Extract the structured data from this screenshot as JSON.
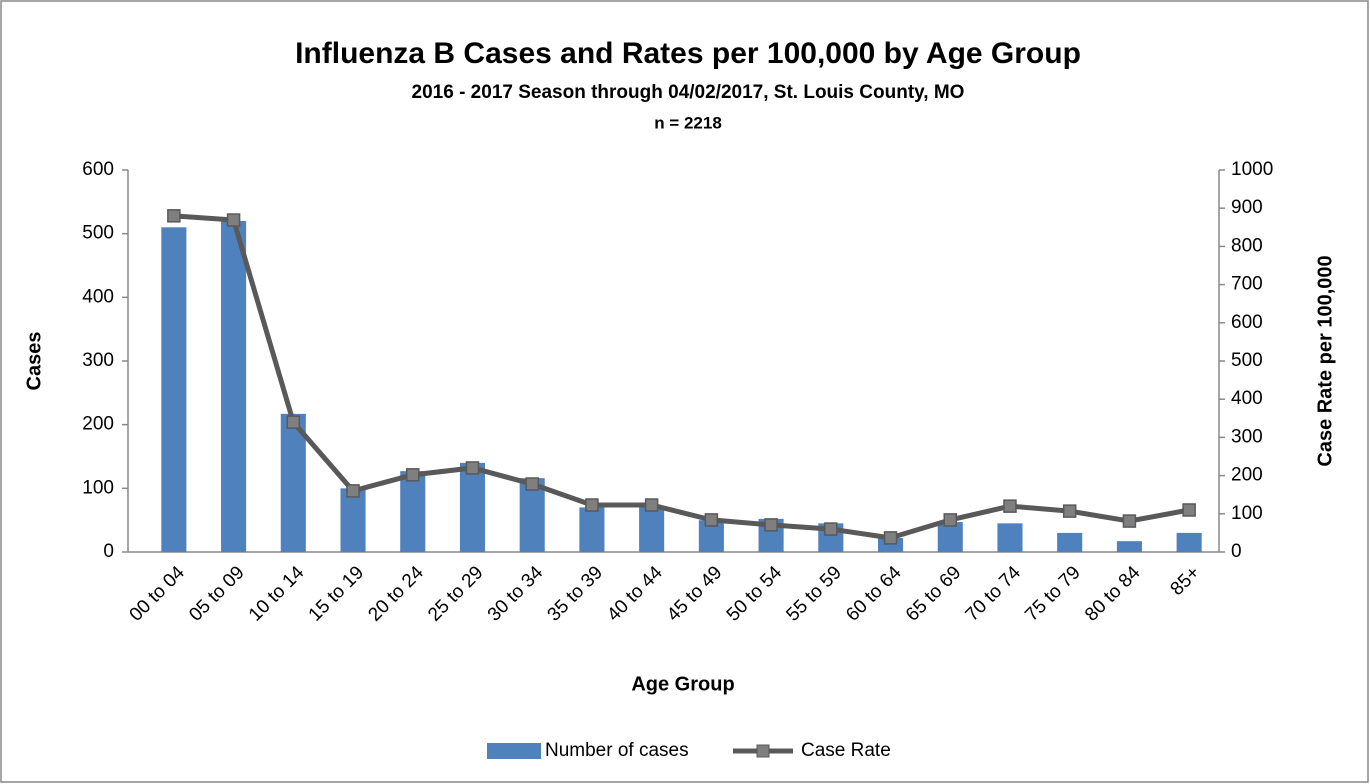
{
  "chart_data": {
    "type": "bar",
    "title": "Influenza B Cases and Rates per 100,000 by Age Group",
    "subtitle": "2016 - 2017 Season through 04/02/2017, St. Louis County, MO",
    "note": "n = 2218",
    "x_label": "Age Group",
    "y_label": "Cases",
    "y2_label": "Case Rate per 100,000",
    "categories": [
      "00 to 04",
      "05 to 09",
      "10 to 14",
      "15 to 19",
      "20 to 24",
      "25 to 29",
      "30 to 34",
      "35 to 39",
      "40 to 44",
      "45 to 49",
      "50 to 54",
      "55 to 59",
      "60 to 64",
      "65 to 69",
      "70 to 74",
      "75 to 79",
      "80 to 84",
      "85+"
    ],
    "series": [
      {
        "name": "Number of cases",
        "type": "bar",
        "color": "#4f81bd",
        "values": [
          510,
          520,
          217,
          100,
          127,
          140,
          116,
          70,
          72,
          50,
          52,
          45,
          22,
          47,
          45,
          30,
          17,
          30
        ]
      },
      {
        "name": "Case Rate",
        "type": "line",
        "axis": "y2",
        "color": "#595959",
        "marker_color": "#7f7f7f",
        "values": [
          880,
          869,
          340,
          160,
          202,
          220,
          178,
          123,
          123,
          84,
          71,
          60,
          37,
          84,
          120,
          107,
          81,
          110
        ]
      }
    ],
    "ylim": [
      0,
      600
    ],
    "yticks": [
      0,
      100,
      200,
      300,
      400,
      500,
      600
    ],
    "y2lim": [
      0,
      1000
    ],
    "y2ticks": [
      0,
      100,
      200,
      300,
      400,
      500,
      600,
      700,
      800,
      900,
      1000
    ],
    "legend": "bottom"
  }
}
